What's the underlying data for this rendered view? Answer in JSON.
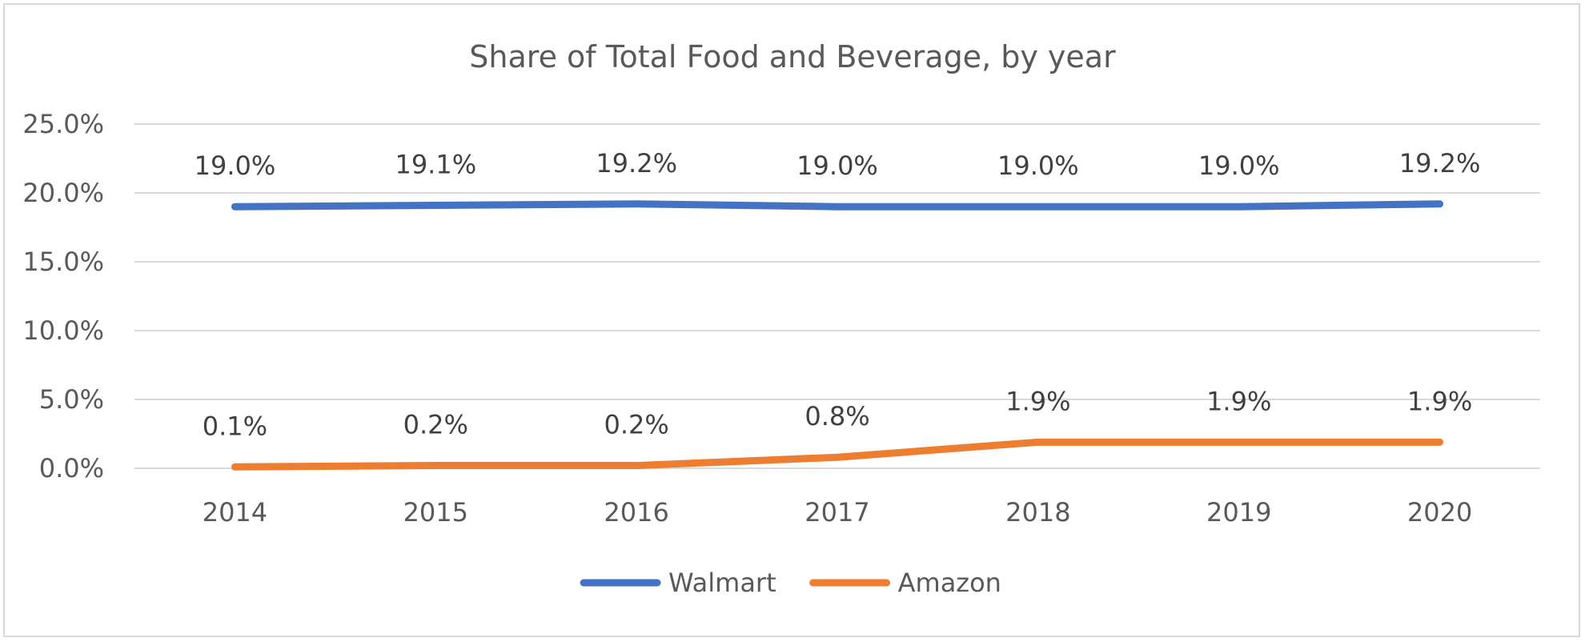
{
  "chart_data": {
    "type": "line",
    "title": "Share of Total Food and Beverage, by year",
    "categories": [
      "2014",
      "2015",
      "2016",
      "2017",
      "2018",
      "2019",
      "2020"
    ],
    "series": [
      {
        "name": "Walmart",
        "color": "#4472c4",
        "values": [
          19.0,
          19.1,
          19.2,
          19.0,
          19.0,
          19.0,
          19.2
        ],
        "labels": [
          "19.0%",
          "19.1%",
          "19.2%",
          "19.0%",
          "19.0%",
          "19.0%",
          "19.2%"
        ]
      },
      {
        "name": "Amazon",
        "color": "#ed7d31",
        "values": [
          0.1,
          0.2,
          0.2,
          0.8,
          1.9,
          1.9,
          1.9
        ],
        "labels": [
          "0.1%",
          "0.2%",
          "0.2%",
          "0.8%",
          "1.9%",
          "1.9%",
          "1.9%"
        ]
      }
    ],
    "ylim": [
      0,
      25
    ],
    "yticks": [
      0,
      5,
      10,
      15,
      20,
      25
    ],
    "ytick_labels": [
      "0.0%",
      "5.0%",
      "10.0%",
      "15.0%",
      "20.0%",
      "25.0%"
    ],
    "grid": true,
    "legend": "bottom",
    "xlabel": "",
    "ylabel": ""
  }
}
